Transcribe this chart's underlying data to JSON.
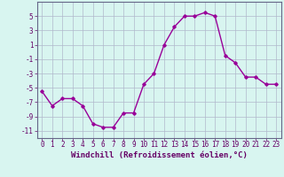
{
  "x": [
    0,
    1,
    2,
    3,
    4,
    5,
    6,
    7,
    8,
    9,
    10,
    11,
    12,
    13,
    14,
    15,
    16,
    17,
    18,
    19,
    20,
    21,
    22,
    23
  ],
  "y": [
    -5.5,
    -7.5,
    -6.5,
    -6.5,
    -7.5,
    -10.0,
    -10.5,
    -10.5,
    -8.5,
    -8.5,
    -4.5,
    -3.0,
    1.0,
    3.5,
    5.0,
    5.0,
    5.5,
    5.0,
    -0.5,
    -1.5,
    -3.5,
    -3.5,
    -4.5,
    -4.5
  ],
  "xlabel": "Windchill (Refroidissement éolien,°C)",
  "line_color": "#990099",
  "marker": "D",
  "marker_size": 1.8,
  "linewidth": 1.0,
  "bg_color": "#d8f5f0",
  "grid_color": "#b0b8cc",
  "ylim": [
    -12,
    7
  ],
  "xlim": [
    -0.5,
    23.5
  ],
  "yticks": [
    -11,
    -9,
    -7,
    -5,
    -3,
    -1,
    1,
    3,
    5
  ],
  "xticks": [
    0,
    1,
    2,
    3,
    4,
    5,
    6,
    7,
    8,
    9,
    10,
    11,
    12,
    13,
    14,
    15,
    16,
    17,
    18,
    19,
    20,
    21,
    22,
    23
  ],
  "tick_color": "#660066",
  "tick_fontsize": 5.5,
  "xlabel_fontsize": 6.5,
  "spine_color": "#666688"
}
